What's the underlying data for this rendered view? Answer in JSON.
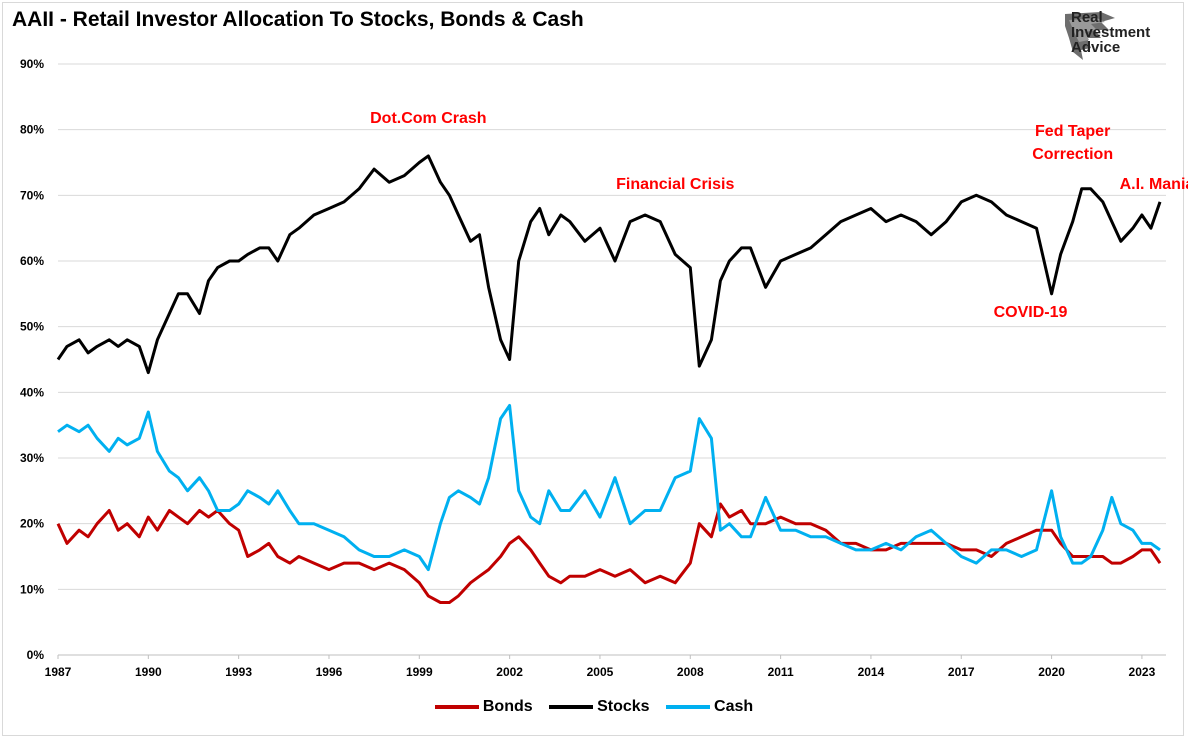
{
  "title": "AAII - Retail Investor Allocation To Stocks, Bonds & Cash",
  "logo": {
    "icon": "eagle-head-icon",
    "lines": [
      "Real",
      "Investment",
      "Advice"
    ]
  },
  "colors": {
    "bonds": "#c00000",
    "stocks": "#000000",
    "cash": "#00b0f0",
    "annotation": "#ff0000",
    "grid": "#d9d9d9"
  },
  "chart_data": {
    "type": "line",
    "title": "AAII - Retail Investor Allocation To Stocks, Bonds & Cash",
    "xlabel": "",
    "ylabel": "",
    "xlim": [
      1987,
      2023.8
    ],
    "ylim": [
      0,
      90
    ],
    "x_ticks": [
      1987,
      1990,
      1993,
      1996,
      1999,
      2002,
      2005,
      2008,
      2011,
      2014,
      2017,
      2020,
      2023
    ],
    "y_ticks": [
      "0%",
      "10%",
      "20%",
      "30%",
      "40%",
      "50%",
      "60%",
      "70%",
      "80%",
      "90%"
    ],
    "grid": "horizontal",
    "legend": "bottom-center",
    "series": [
      {
        "name": "Bonds",
        "color": "#c00000",
        "x": [
          1987,
          1987.3,
          1987.7,
          1988,
          1988.3,
          1988.7,
          1989,
          1989.3,
          1989.7,
          1990,
          1990.3,
          1990.7,
          1991,
          1991.3,
          1991.7,
          1992,
          1992.3,
          1992.7,
          1993,
          1993.3,
          1993.7,
          1994,
          1994.3,
          1994.7,
          1995,
          1995.5,
          1996,
          1996.5,
          1997,
          1997.5,
          1998,
          1998.5,
          1999,
          1999.3,
          1999.7,
          2000,
          2000.3,
          2000.7,
          2001,
          2001.3,
          2001.7,
          2002,
          2002.3,
          2002.7,
          2003,
          2003.3,
          2003.7,
          2004,
          2004.5,
          2005,
          2005.5,
          2006,
          2006.5,
          2007,
          2007.5,
          2008,
          2008.3,
          2008.7,
          2009,
          2009.3,
          2009.7,
          2010,
          2010.5,
          2011,
          2011.5,
          2012,
          2012.5,
          2013,
          2013.5,
          2014,
          2014.5,
          2015,
          2015.5,
          2016,
          2016.5,
          2017,
          2017.5,
          2018,
          2018.5,
          2019,
          2019.5,
          2020,
          2020.3,
          2020.7,
          2021,
          2021.3,
          2021.7,
          2022,
          2022.3,
          2022.7,
          2023,
          2023.3,
          2023.6
        ],
        "values": [
          20,
          17,
          19,
          18,
          20,
          22,
          19,
          20,
          18,
          21,
          19,
          22,
          21,
          20,
          22,
          21,
          22,
          20,
          19,
          15,
          16,
          17,
          15,
          14,
          15,
          14,
          13,
          14,
          14,
          13,
          14,
          13,
          11,
          9,
          8,
          8,
          9,
          11,
          12,
          13,
          15,
          17,
          18,
          16,
          14,
          12,
          11,
          12,
          12,
          13,
          12,
          13,
          11,
          12,
          11,
          14,
          20,
          18,
          23,
          21,
          22,
          20,
          20,
          21,
          20,
          20,
          19,
          17,
          17,
          16,
          16,
          17,
          17,
          17,
          17,
          16,
          16,
          15,
          17,
          18,
          19,
          19,
          17,
          15,
          15,
          15,
          15,
          14,
          14,
          15,
          16,
          16,
          14
        ]
      },
      {
        "name": "Stocks",
        "color": "#000000",
        "x": [
          1987,
          1987.3,
          1987.7,
          1988,
          1988.3,
          1988.7,
          1989,
          1989.3,
          1989.7,
          1990,
          1990.3,
          1990.7,
          1991,
          1991.3,
          1991.7,
          1992,
          1992.3,
          1992.7,
          1993,
          1993.3,
          1993.7,
          1994,
          1994.3,
          1994.7,
          1995,
          1995.5,
          1996,
          1996.5,
          1997,
          1997.5,
          1998,
          1998.5,
          1999,
          1999.3,
          1999.7,
          2000,
          2000.3,
          2000.7,
          2001,
          2001.3,
          2001.7,
          2002,
          2002.3,
          2002.7,
          2003,
          2003.3,
          2003.7,
          2004,
          2004.5,
          2005,
          2005.5,
          2006,
          2006.5,
          2007,
          2007.5,
          2008,
          2008.3,
          2008.7,
          2009,
          2009.3,
          2009.7,
          2010,
          2010.5,
          2011,
          2011.5,
          2012,
          2012.5,
          2013,
          2013.5,
          2014,
          2014.5,
          2015,
          2015.5,
          2016,
          2016.5,
          2017,
          2017.5,
          2018,
          2018.5,
          2019,
          2019.5,
          2020,
          2020.3,
          2020.7,
          2021,
          2021.3,
          2021.7,
          2022,
          2022.3,
          2022.7,
          2023,
          2023.3,
          2023.6
        ],
        "values": [
          45,
          47,
          48,
          46,
          47,
          48,
          47,
          48,
          47,
          43,
          48,
          52,
          55,
          55,
          52,
          57,
          59,
          60,
          60,
          61,
          62,
          62,
          60,
          64,
          65,
          67,
          68,
          69,
          71,
          74,
          72,
          73,
          75,
          76,
          72,
          70,
          67,
          63,
          64,
          56,
          48,
          45,
          60,
          66,
          68,
          64,
          67,
          66,
          63,
          65,
          60,
          66,
          67,
          66,
          61,
          59,
          44,
          48,
          57,
          60,
          62,
          62,
          56,
          60,
          61,
          62,
          64,
          66,
          67,
          68,
          66,
          67,
          66,
          64,
          66,
          69,
          70,
          69,
          67,
          66,
          65,
          55,
          61,
          66,
          71,
          71,
          69,
          66,
          63,
          65,
          67,
          65,
          69
        ]
      },
      {
        "name": "Cash",
        "color": "#00b0f0",
        "x": [
          1987,
          1987.3,
          1987.7,
          1988,
          1988.3,
          1988.7,
          1989,
          1989.3,
          1989.7,
          1990,
          1990.3,
          1990.7,
          1991,
          1991.3,
          1991.7,
          1992,
          1992.3,
          1992.7,
          1993,
          1993.3,
          1993.7,
          1994,
          1994.3,
          1994.7,
          1995,
          1995.5,
          1996,
          1996.5,
          1997,
          1997.5,
          1998,
          1998.5,
          1999,
          1999.3,
          1999.7,
          2000,
          2000.3,
          2000.7,
          2001,
          2001.3,
          2001.7,
          2002,
          2002.3,
          2002.7,
          2003,
          2003.3,
          2003.7,
          2004,
          2004.5,
          2005,
          2005.5,
          2006,
          2006.5,
          2007,
          2007.5,
          2008,
          2008.3,
          2008.7,
          2009,
          2009.3,
          2009.7,
          2010,
          2010.5,
          2011,
          2011.5,
          2012,
          2012.5,
          2013,
          2013.5,
          2014,
          2014.5,
          2015,
          2015.5,
          2016,
          2016.5,
          2017,
          2017.5,
          2018,
          2018.5,
          2019,
          2019.5,
          2020,
          2020.3,
          2020.7,
          2021,
          2021.3,
          2021.7,
          2022,
          2022.3,
          2022.7,
          2023,
          2023.3,
          2023.6
        ],
        "values": [
          34,
          35,
          34,
          35,
          33,
          31,
          33,
          32,
          33,
          37,
          31,
          28,
          27,
          25,
          27,
          25,
          22,
          22,
          23,
          25,
          24,
          23,
          25,
          22,
          20,
          20,
          19,
          18,
          16,
          15,
          15,
          16,
          15,
          13,
          20,
          24,
          25,
          24,
          23,
          27,
          36,
          38,
          25,
          21,
          20,
          25,
          22,
          22,
          25,
          21,
          27,
          20,
          22,
          22,
          27,
          28,
          36,
          33,
          19,
          20,
          18,
          18,
          24,
          19,
          19,
          18,
          18,
          17,
          16,
          16,
          17,
          16,
          18,
          19,
          17,
          15,
          14,
          16,
          16,
          15,
          16,
          25,
          18,
          14,
          14,
          15,
          19,
          24,
          20,
          19,
          17,
          17,
          16
        ]
      }
    ],
    "annotations": [
      {
        "text": "Dot.Com Crash",
        "x": 1999.3,
        "y": 81
      },
      {
        "text": "Financial Crisis",
        "x": 2007.5,
        "y": 71
      },
      {
        "text": "Fed Taper",
        "x": 2020.7,
        "y": 79
      },
      {
        "text": "Correction",
        "x": 2020.7,
        "y": 75.5
      },
      {
        "text": "A.I. Mania",
        "x": 2023.5,
        "y": 71
      },
      {
        "text": "COVID-19",
        "x": 2019.3,
        "y": 51.5
      }
    ]
  }
}
